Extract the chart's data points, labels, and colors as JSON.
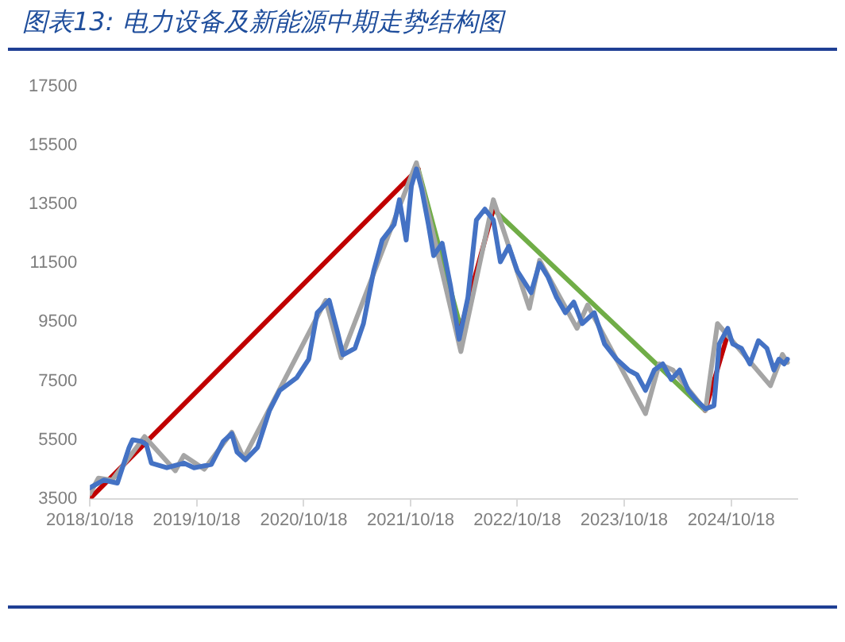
{
  "chart_data": {
    "type": "line",
    "title": "图表13:  电力设备及新能源中期走势结构图",
    "xlim": [
      "2018-10-18",
      "2025-06-01"
    ],
    "xticks": [
      {
        "value": "2018-10-18",
        "label": "2018/10/18"
      },
      {
        "value": "2019-10-18",
        "label": "2019/10/18"
      },
      {
        "value": "2020-10-18",
        "label": "2020/10/18"
      },
      {
        "value": "2021-10-18",
        "label": "2021/10/18"
      },
      {
        "value": "2022-10-18",
        "label": "2022/10/18"
      },
      {
        "value": "2023-10-18",
        "label": "2023/10/18"
      },
      {
        "value": "2024-10-18",
        "label": "2024/10/18"
      }
    ],
    "ylim": [
      3500,
      17500
    ],
    "yticks": [
      3500,
      5500,
      7500,
      9500,
      11500,
      13500,
      15500,
      17500
    ],
    "grid": false,
    "legend": false,
    "marker": "none",
    "line_style": "solid",
    "series": [
      {
        "color": "#4472c4",
        "x": [
          "2018-10-18",
          "2018-12-04",
          "2019-01-20",
          "2019-03-01",
          "2019-03-13",
          "2019-04-11",
          "2019-04-29",
          "2019-05-16",
          "2019-07-08",
          "2019-09-04",
          "2019-10-09",
          "2019-12-07",
          "2020-01-17",
          "2020-02-15",
          "2020-03-04",
          "2020-04-02",
          "2020-05-13",
          "2020-06-23",
          "2020-07-28",
          "2020-09-24",
          "2020-11-04",
          "2020-12-03",
          "2021-01-13",
          "2021-02-11",
          "2021-03-01",
          "2021-04-11",
          "2021-05-10",
          "2021-06-14",
          "2021-07-13",
          "2021-08-23",
          "2021-09-10",
          "2021-10-03",
          "2021-10-21",
          "2021-11-07",
          "2021-11-25",
          "2021-12-18",
          "2022-01-05",
          "2022-02-03",
          "2022-03-04",
          "2022-04-02",
          "2022-05-02",
          "2022-05-31",
          "2022-06-29",
          "2022-07-28",
          "2022-08-21",
          "2022-09-19",
          "2022-10-18",
          "2022-12-04",
          "2023-01-02",
          "2023-01-31",
          "2023-03-01",
          "2023-03-31",
          "2023-04-29",
          "2023-05-28",
          "2023-07-08",
          "2023-08-12",
          "2023-09-22",
          "2023-11-02",
          "2023-12-01",
          "2023-12-30",
          "2024-01-29",
          "2024-02-27",
          "2024-03-27",
          "2024-04-25",
          "2024-05-24",
          "2024-06-23",
          "2024-07-22",
          "2024-08-20",
          "2024-09-07",
          "2024-10-06",
          "2024-10-23",
          "2024-11-22",
          "2024-12-21",
          "2025-01-19",
          "2025-02-17",
          "2025-03-13",
          "2025-03-30",
          "2025-04-17",
          "2025-04-28"
        ],
        "values": [
          3870,
          4130,
          4030,
          5240,
          5500,
          5450,
          5340,
          4710,
          4550,
          4710,
          4550,
          4660,
          5450,
          5710,
          5080,
          4820,
          5240,
          6500,
          7180,
          7610,
          8240,
          9820,
          10240,
          9130,
          8390,
          8610,
          9450,
          11240,
          12290,
          12820,
          13660,
          12290,
          14130,
          14710,
          14030,
          12820,
          11760,
          12180,
          10710,
          8920,
          10340,
          12970,
          13340,
          12970,
          11550,
          12080,
          11240,
          10500,
          11500,
          11030,
          10340,
          9820,
          10180,
          9450,
          9820,
          8760,
          8240,
          7870,
          7710,
          7180,
          7870,
          8080,
          7550,
          7870,
          7180,
          6820,
          6550,
          6660,
          8760,
          9290,
          8760,
          8610,
          8080,
          8870,
          8610,
          7870,
          8240,
          8080,
          8240
        ]
      },
      {
        "color": "#a5a5a5",
        "x": [
          "2018-10-18",
          "2018-11-16",
          "2019-01-02",
          "2019-04-23",
          "2019-08-06",
          "2019-09-04",
          "2019-11-13",
          "2020-02-15",
          "2020-03-27",
          "2021-01-01",
          "2021-02-23",
          "2021-11-07",
          "2022-04-08",
          "2022-07-28",
          "2022-11-28",
          "2023-01-02",
          "2023-05-10",
          "2023-06-15",
          "2023-12-30",
          "2024-02-15",
          "2024-04-02",
          "2024-07-22",
          "2024-09-01",
          "2025-03-01",
          "2025-04-11",
          "2025-04-28"
        ],
        "values": [
          3660,
          4200,
          4130,
          5610,
          4450,
          4970,
          4500,
          5760,
          4870,
          10240,
          8290,
          14920,
          8500,
          13660,
          9970,
          11600,
          9290,
          10080,
          6390,
          8080,
          7870,
          6500,
          9450,
          7340,
          8400,
          8130
        ]
      },
      {
        "color": "#c00000",
        "x": [
          "2018-10-18",
          "2021-11-13",
          "2022-01-15",
          "2022-04-08",
          "2022-07-28",
          "2023-06-01",
          "2024-07-21",
          "2024-10-06"
        ],
        "values": [
          3500,
          14710,
          null,
          9290,
          13340,
          null,
          6500,
          9080
        ]
      },
      {
        "color": "#70ad47",
        "x": [
          "2021-11-13",
          "2022-04-08",
          "2022-06-01",
          "2022-07-28",
          "2024-07-21"
        ],
        "values": [
          14710,
          9290,
          null,
          13340,
          6500
        ]
      }
    ]
  }
}
